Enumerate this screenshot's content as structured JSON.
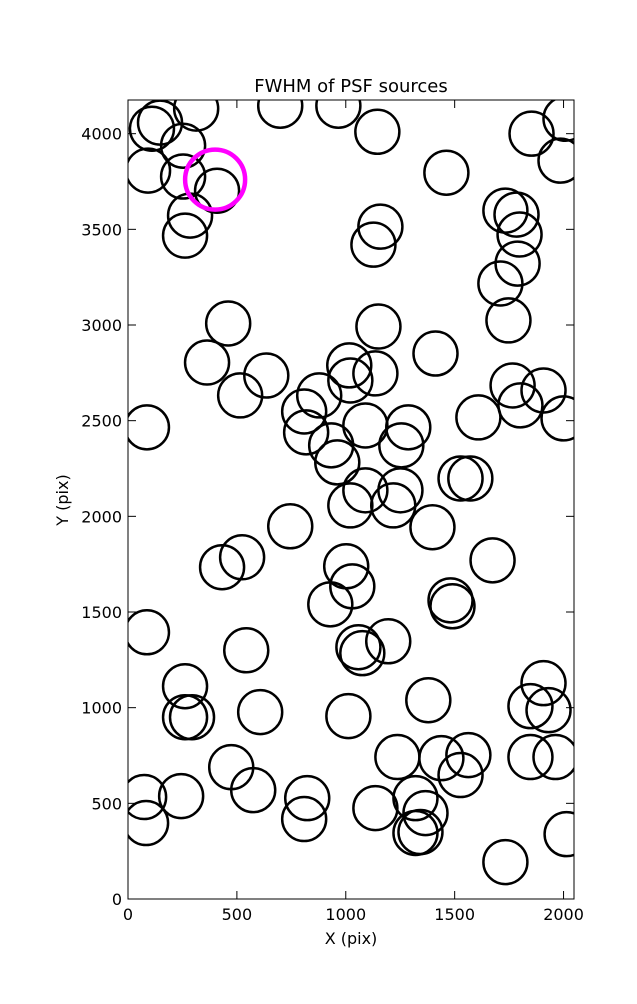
{
  "chart_data": {
    "type": "scatter",
    "title": "FWHM of PSF sources",
    "x_label": "X (pix)",
    "y_label": "Y (pix)",
    "xlim": [
      0,
      2048
    ],
    "ylim": [
      0,
      4176
    ],
    "xticks": [
      0,
      500,
      1000,
      1500,
      2000
    ],
    "yticks": [
      0,
      500,
      1000,
      1500,
      2000,
      2500,
      3000,
      3500,
      4000
    ],
    "series": [
      {
        "color": "#000000",
        "x": [
          110,
          147,
          313,
          699,
          966,
          92,
          253,
          253,
          409,
          285,
          262,
          1145,
          1462,
          1853,
          2009,
          1986,
          1159,
          1127,
          1733,
          1784,
          1798,
          1789,
          1710,
          1747,
          460,
          363,
          635,
          515,
          1150,
          1016,
          1021,
          1136,
          878,
          809,
          818,
          933,
          961,
          1090,
          1287,
          1255,
          1412,
          1609,
          1766,
          1802,
          1908,
          2000,
          87,
          1527,
          1572,
          1090,
          1021,
          1218,
          1251,
          1398,
          745,
          524,
          432,
          1674,
          1002,
          1030,
          929,
          1481,
          1490,
          87,
          1058,
          1076,
          1195,
          543,
          262,
          262,
          294,
          607,
          1012,
          1379,
          1848,
          1908,
          1931,
          1963,
          1848,
          474,
          575,
          244,
          74,
          83,
          823,
          809,
          1136,
          1237,
          1439,
          1563,
          1527,
          1320,
          1366,
          1343,
          1320,
          1733,
          2014
        ],
        "values": [
          4026,
          4058,
          4131,
          4146,
          4146,
          3807,
          3937,
          3776,
          3702,
          3572,
          3467,
          4010,
          3796,
          4000,
          4078,
          3859,
          3514,
          3420,
          3598,
          3577,
          3473,
          3321,
          3217,
          3024,
          3008,
          2804,
          2736,
          2632,
          2992,
          2789,
          2710,
          2747,
          2632,
          2548,
          2439,
          2371,
          2282,
          2475,
          2465,
          2371,
          2851,
          2517,
          2684,
          2580,
          2658,
          2512,
          2465,
          2198,
          2198,
          2136,
          2057,
          2057,
          2136,
          1943,
          1948,
          1786,
          1734,
          1770,
          1739,
          1634,
          1540,
          1561,
          1530,
          1394,
          1316,
          1285,
          1347,
          1300,
          1112,
          950,
          950,
          977,
          956,
          1039,
          1008,
          1128,
          987,
          742,
          742,
          689,
          569,
          538,
          533,
          397,
          527,
          418,
          475,
          742,
          736,
          752,
          648,
          527,
          449,
          350,
          345,
          193,
          339
        ]
      },
      {
        "color": "#ff00ff",
        "x": [
          400
        ],
        "values": [
          3760
        ]
      }
    ]
  }
}
